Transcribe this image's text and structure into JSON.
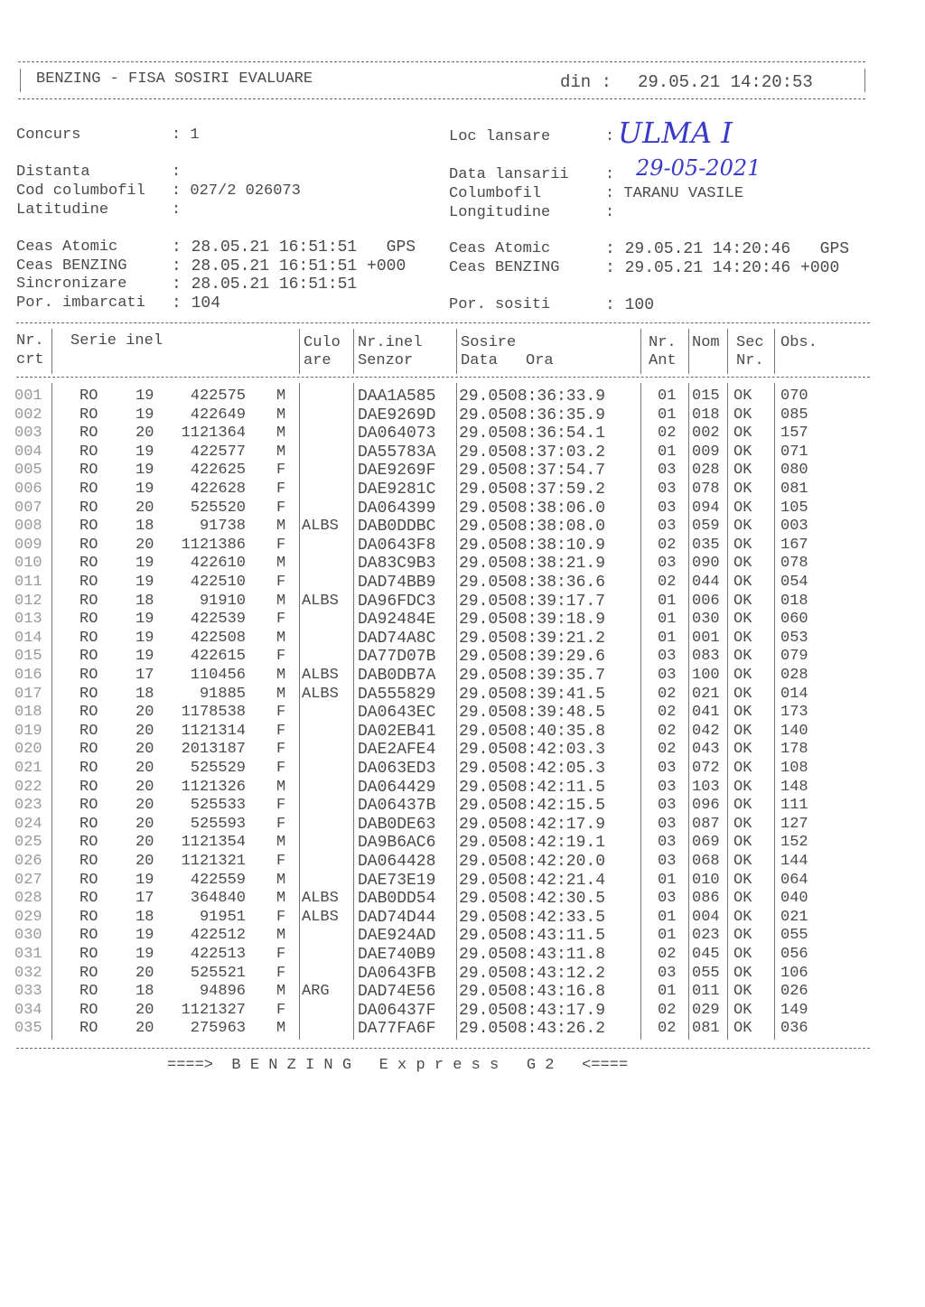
{
  "header": {
    "title": "BENZING - FISA SOSIRI EVALUARE",
    "din_label": "din :",
    "din_value": "29.05.21 14:20:53"
  },
  "info": {
    "concurs_label": "Concurs",
    "concurs_value": ": 1",
    "distanta_label": "Distanta",
    "distanta_value": ":",
    "cod_label": "Cod columbofil",
    "cod_value": ": 027/2 026073",
    "latitudine_label": "Latitudine",
    "latitudine_value": ":",
    "loc_label": "Loc lansare",
    "loc_value": ":",
    "loc_handwritten": "ULMA I",
    "data_label": "Data lansarii",
    "data_value": ":",
    "data_handwritten": "29-05-2021",
    "columbofil_label": "Columbofil",
    "columbofil_value": ": TARANU VASILE",
    "longitudine_label": "Longitudine",
    "longitudine_value": ":",
    "ceas_atomic_label": "Ceas Atomic",
    "ceas_atomic_value": ": 28.05.21 16:51:51   GPS",
    "ceas_benzing_label": "Ceas BENZING",
    "ceas_benzing_value": ": 28.05.21 16:51:51 +000",
    "sincronizare_label": "Sincronizare",
    "sincronizare_value": ": 28.05.21 16:51:51",
    "imbarcati_label": "Por. imbarcati",
    "imbarcati_value": ": 104",
    "ceas_atomic2_label": "Ceas Atomic",
    "ceas_atomic2_value": ": 29.05.21 14:20:46   GPS",
    "ceas_benzing2_label": "Ceas BENZING",
    "ceas_benzing2_value": ": 29.05.21 14:20:46 +000",
    "sositi_label": "Por. sositi",
    "sositi_value": ": 100"
  },
  "table": {
    "headers": {
      "nr1": "Nr.",
      "nr2": "crt",
      "serie": "Serie inel",
      "culo1": "Culo",
      "culo2": "are",
      "inel1": "Nr.inel",
      "inel2": "Senzor",
      "sosire": "Sosire",
      "data": "Data",
      "ora": "Ora",
      "ant1": "Nr.",
      "ant2": "Ant",
      "nom": "Nom",
      "sec1": "Sec",
      "sec2": "Nr.",
      "obs": "Obs."
    },
    "rows": [
      [
        "001",
        "RO",
        "19",
        "422575",
        "M",
        "",
        "DAA1A585",
        "29.05",
        "08:36:33.9",
        "01",
        "015",
        "OK",
        "070"
      ],
      [
        "002",
        "RO",
        "19",
        "422649",
        "M",
        "",
        "DAE9269D",
        "29.05",
        "08:36:35.9",
        "01",
        "018",
        "OK",
        "085"
      ],
      [
        "003",
        "RO",
        "20",
        "1121364",
        "M",
        "",
        "DA064073",
        "29.05",
        "08:36:54.1",
        "02",
        "002",
        "OK",
        "157"
      ],
      [
        "004",
        "RO",
        "19",
        "422577",
        "M",
        "",
        "DA55783A",
        "29.05",
        "08:37:03.2",
        "01",
        "009",
        "OK",
        "071"
      ],
      [
        "005",
        "RO",
        "19",
        "422625",
        "F",
        "",
        "DAE9269F",
        "29.05",
        "08:37:54.7",
        "03",
        "028",
        "OK",
        "080"
      ],
      [
        "006",
        "RO",
        "19",
        "422628",
        "F",
        "",
        "DAE9281C",
        "29.05",
        "08:37:59.2",
        "03",
        "078",
        "OK",
        "081"
      ],
      [
        "007",
        "RO",
        "20",
        "525520",
        "F",
        "",
        "DA064399",
        "29.05",
        "08:38:06.0",
        "03",
        "094",
        "OK",
        "105"
      ],
      [
        "008",
        "RO",
        "18",
        "91738",
        "M",
        "ALBS",
        "DAB0DDBC",
        "29.05",
        "08:38:08.0",
        "03",
        "059",
        "OK",
        "003"
      ],
      [
        "009",
        "RO",
        "20",
        "1121386",
        "F",
        "",
        "DA0643F8",
        "29.05",
        "08:38:10.9",
        "02",
        "035",
        "OK",
        "167"
      ],
      [
        "010",
        "RO",
        "19",
        "422610",
        "M",
        "",
        "DA83C9B3",
        "29.05",
        "08:38:21.9",
        "03",
        "090",
        "OK",
        "078"
      ],
      [
        "011",
        "RO",
        "19",
        "422510",
        "F",
        "",
        "DAD74BB9",
        "29.05",
        "08:38:36.6",
        "02",
        "044",
        "OK",
        "054"
      ],
      [
        "012",
        "RO",
        "18",
        "91910",
        "M",
        "ALBS",
        "DA96FDC3",
        "29.05",
        "08:39:17.7",
        "01",
        "006",
        "OK",
        "018"
      ],
      [
        "013",
        "RO",
        "19",
        "422539",
        "F",
        "",
        "DA92484E",
        "29.05",
        "08:39:18.9",
        "01",
        "030",
        "OK",
        "060"
      ],
      [
        "014",
        "RO",
        "19",
        "422508",
        "M",
        "",
        "DAD74A8C",
        "29.05",
        "08:39:21.2",
        "01",
        "001",
        "OK",
        "053"
      ],
      [
        "015",
        "RO",
        "19",
        "422615",
        "F",
        "",
        "DA77D07B",
        "29.05",
        "08:39:29.6",
        "03",
        "083",
        "OK",
        "079"
      ],
      [
        "016",
        "RO",
        "17",
        "110456",
        "M",
        "ALBS",
        "DAB0DB7A",
        "29.05",
        "08:39:35.7",
        "03",
        "100",
        "OK",
        "028"
      ],
      [
        "017",
        "RO",
        "18",
        "91885",
        "M",
        "ALBS",
        "DA555829",
        "29.05",
        "08:39:41.5",
        "02",
        "021",
        "OK",
        "014"
      ],
      [
        "018",
        "RO",
        "20",
        "1178538",
        "F",
        "",
        "DA0643EC",
        "29.05",
        "08:39:48.5",
        "02",
        "041",
        "OK",
        "173"
      ],
      [
        "019",
        "RO",
        "20",
        "1121314",
        "F",
        "",
        "DA02EB41",
        "29.05",
        "08:40:35.8",
        "02",
        "042",
        "OK",
        "140"
      ],
      [
        "020",
        "RO",
        "20",
        "2013187",
        "F",
        "",
        "DAE2AFE4",
        "29.05",
        "08:42:03.3",
        "02",
        "043",
        "OK",
        "178"
      ],
      [
        "021",
        "RO",
        "20",
        "525529",
        "F",
        "",
        "DA063ED3",
        "29.05",
        "08:42:05.3",
        "03",
        "072",
        "OK",
        "108"
      ],
      [
        "022",
        "RO",
        "20",
        "1121326",
        "M",
        "",
        "DA064429",
        "29.05",
        "08:42:11.5",
        "03",
        "103",
        "OK",
        "148"
      ],
      [
        "023",
        "RO",
        "20",
        "525533",
        "F",
        "",
        "DA06437B",
        "29.05",
        "08:42:15.5",
        "03",
        "096",
        "OK",
        "111"
      ],
      [
        "024",
        "RO",
        "20",
        "525593",
        "F",
        "",
        "DAB0DE63",
        "29.05",
        "08:42:17.9",
        "03",
        "087",
        "OK",
        "127"
      ],
      [
        "025",
        "RO",
        "20",
        "1121354",
        "M",
        "",
        "DA9B6AC6",
        "29.05",
        "08:42:19.1",
        "03",
        "069",
        "OK",
        "152"
      ],
      [
        "026",
        "RO",
        "20",
        "1121321",
        "F",
        "",
        "DA064428",
        "29.05",
        "08:42:20.0",
        "03",
        "068",
        "OK",
        "144"
      ],
      [
        "027",
        "RO",
        "19",
        "422559",
        "M",
        "",
        "DAE73E19",
        "29.05",
        "08:42:21.4",
        "01",
        "010",
        "OK",
        "064"
      ],
      [
        "028",
        "RO",
        "17",
        "364840",
        "M",
        "ALBS",
        "DAB0DD54",
        "29.05",
        "08:42:30.5",
        "03",
        "086",
        "OK",
        "040"
      ],
      [
        "029",
        "RO",
        "18",
        "91951",
        "F",
        "ALBS",
        "DAD74D44",
        "29.05",
        "08:42:33.5",
        "01",
        "004",
        "OK",
        "021"
      ],
      [
        "030",
        "RO",
        "19",
        "422512",
        "M",
        "",
        "DAE924AD",
        "29.05",
        "08:43:11.5",
        "01",
        "023",
        "OK",
        "055"
      ],
      [
        "031",
        "RO",
        "19",
        "422513",
        "F",
        "",
        "DAE740B9",
        "29.05",
        "08:43:11.8",
        "02",
        "045",
        "OK",
        "056"
      ],
      [
        "032",
        "RO",
        "20",
        "525521",
        "F",
        "",
        "DA0643FB",
        "29.05",
        "08:43:12.2",
        "03",
        "055",
        "OK",
        "106"
      ],
      [
        "033",
        "RO",
        "18",
        "94896",
        "M",
        "ARG",
        "DAD74E56",
        "29.05",
        "08:43:16.8",
        "01",
        "011",
        "OK",
        "026"
      ],
      [
        "034",
        "RO",
        "20",
        "1121327",
        "F",
        "",
        "DA06437F",
        "29.05",
        "08:43:17.9",
        "02",
        "029",
        "OK",
        "149"
      ],
      [
        "035",
        "RO",
        "20",
        "275963",
        "M",
        "",
        "DA77FA6F",
        "29.05",
        "08:43:26.2",
        "02",
        "081",
        "OK",
        "036"
      ]
    ]
  },
  "footer": {
    "text": "====>  B E N Z I N G   E x p r e s s   G 2   <===="
  }
}
